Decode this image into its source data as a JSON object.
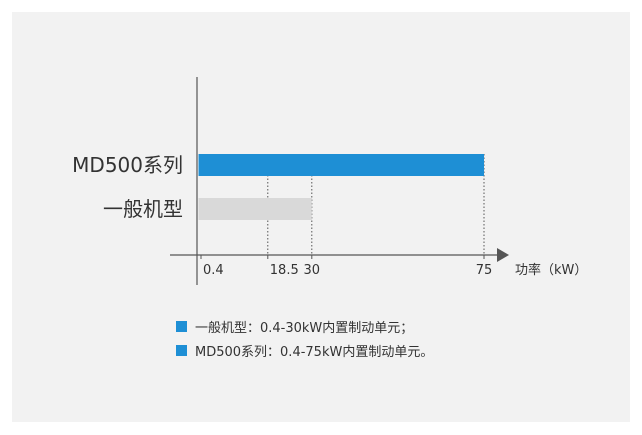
{
  "chart_data": {
    "type": "bar",
    "orientation": "horizontal",
    "categories": [
      "MD500系列",
      "一般机型"
    ],
    "series": [
      {
        "values": [
          75,
          30
        ],
        "colors": [
          "#1e8fd5",
          "#d9d9d9"
        ]
      }
    ],
    "x_start": 0.4,
    "xticks": [
      0.4,
      18.5,
      30,
      75
    ],
    "xtick_labels": [
      "0.4",
      "18.5",
      "30",
      "75"
    ],
    "xlim": [
      0,
      80
    ],
    "xlabel": "功率（kW）",
    "dotted_guides": [
      18.5,
      30,
      75
    ],
    "grid": false
  },
  "legend": [
    {
      "text": "一般机型：0.4-30kW内置制动单元；",
      "color": "#1e8fd5"
    },
    {
      "text": "MD500系列：0.4-75kW内置制动单元。",
      "color": "#1e8fd5"
    }
  ]
}
